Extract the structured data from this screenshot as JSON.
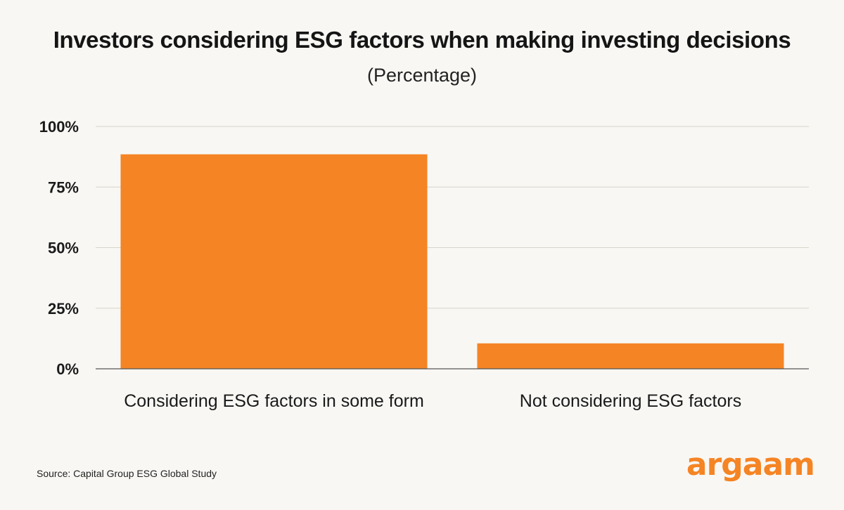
{
  "colors": {
    "bar": "#f58424",
    "grid": "#d8d4c8",
    "axis": "#555555",
    "background": "#f8f7f4",
    "logo": "#f58424"
  },
  "chart_data": {
    "type": "bar",
    "title": "Investors considering ESG factors when making investing decisions",
    "subtitle": "(Percentage)",
    "categories": [
      "Considering ESG factors in some form",
      "Not considering ESG factors"
    ],
    "values": [
      88.5,
      10.5
    ],
    "yticks": [
      "0%",
      "25%",
      "50%",
      "75%",
      "100%"
    ],
    "ylim": [
      0,
      100
    ],
    "grid": true
  },
  "source": "Source: Capital Group ESG Global Study",
  "logo": "argaam"
}
